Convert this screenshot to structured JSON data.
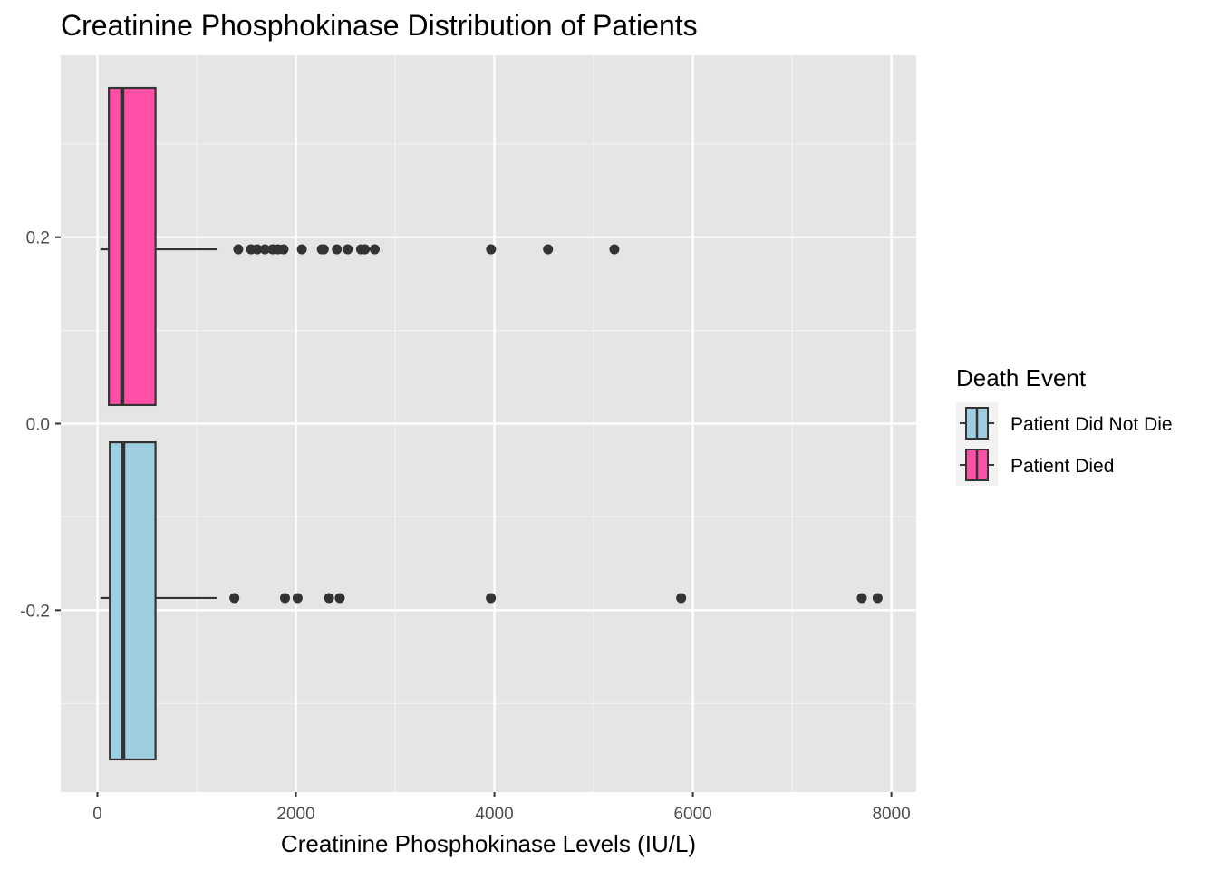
{
  "chart_data": {
    "type": "boxplot",
    "orientation": "horizontal",
    "title": "Creatinine Phosphokinase Distribution of Patients",
    "xlabel": "Creatinine Phosphokinase Levels (IU/L)",
    "ylabel": "",
    "xlim": [
      -370,
      8250
    ],
    "ylim": [
      -0.395,
      0.395
    ],
    "x_ticks": [
      0,
      2000,
      4000,
      6000,
      8000
    ],
    "x_tick_labels": [
      "0",
      "2000",
      "4000",
      "6000",
      "8000"
    ],
    "y_ticks": [
      -0.2,
      0.0,
      0.2
    ],
    "y_tick_labels": [
      "-0.2",
      "0.0",
      "0.2"
    ],
    "grid": true,
    "legend": {
      "title": "Death Event",
      "position": "right"
    },
    "series": [
      {
        "name": "Patient Did Not Die",
        "color": "#9ecfe0",
        "box_y_range": [
          -0.36,
          -0.02
        ],
        "whisker_y": -0.187,
        "stats": {
          "min": 30,
          "q1": 125,
          "median": 260,
          "q3": 585,
          "max": 1200
        },
        "outliers": [
          1380,
          1890,
          2017,
          2334,
          2442,
          3964,
          5882,
          7702,
          7861
        ]
      },
      {
        "name": "Patient Died",
        "color": "#ff4fa6",
        "box_y_range": [
          0.02,
          0.36
        ],
        "whisker_y": 0.187,
        "stats": {
          "min": 30,
          "q1": 115,
          "median": 250,
          "q3": 585,
          "max": 1210
        },
        "outliers": [
          1419,
          1548,
          1610,
          1688,
          1765,
          1820,
          1876,
          2060,
          2261,
          2281,
          2413,
          2522,
          2656,
          2695,
          2794,
          3966,
          4540,
          5209
        ]
      }
    ]
  }
}
